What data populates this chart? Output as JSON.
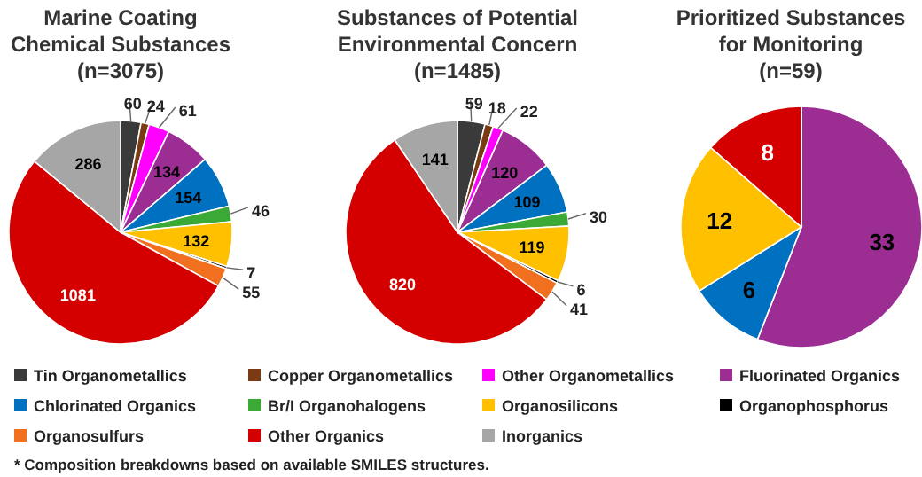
{
  "chart_data": [
    {
      "type": "pie",
      "title": "Marine Coating Chemical Substances",
      "subtitle": "(n=3075)",
      "categories": [
        "Tin Organometallics",
        "Copper Organometallics",
        "Other Organometallics",
        "Fluorinated Organics",
        "Chlorinated Organics",
        "Br/I Organohalogens",
        "Organosilicons",
        "Organophosphorus",
        "Organosulfurs",
        "Other Organics",
        "Inorganics"
      ],
      "values": [
        60,
        24,
        61,
        134,
        154,
        46,
        132,
        7,
        55,
        1081,
        286
      ],
      "colors": [
        "#3a3a3a",
        "#7a3a12",
        "#ff00ff",
        "#9b2d93",
        "#0070c0",
        "#3aa935",
        "#ffc000",
        "#000000",
        "#f07020",
        "#d40000",
        "#a6a6a6"
      ],
      "data_labels": true,
      "legend": "bottom",
      "annotations": [
        "* Composition breakdowns based on available SMILES structures."
      ]
    },
    {
      "type": "pie",
      "title": "Substances of Potential Environmental Concern",
      "subtitle": "(n=1485)",
      "categories": [
        null,
        null,
        null,
        null,
        null,
        null,
        null,
        null,
        null,
        null,
        null
      ],
      "values": [
        59,
        18,
        22,
        120,
        109,
        30,
        119,
        6,
        41,
        820,
        141
      ],
      "colors": [
        "#3a3a3a",
        "#7a3a12",
        "#ff00ff",
        "#9b2d93",
        "#0070c0",
        "#3aa935",
        "#ffc000",
        "#000000",
        "#f07020",
        "#d40000",
        "#a6a6a6"
      ],
      "data_labels": true
    },
    {
      "type": "pie",
      "title": "Prioritized Substances for Monitoring",
      "subtitle": "(n=59)",
      "categories": [
        null,
        null,
        null,
        null
      ],
      "values": [
        33,
        6,
        12,
        8
      ],
      "colors": [
        "#9b2d93",
        "#0070c0",
        "#ffc000",
        "#d40000"
      ],
      "data_labels": true
    }
  ]
}
